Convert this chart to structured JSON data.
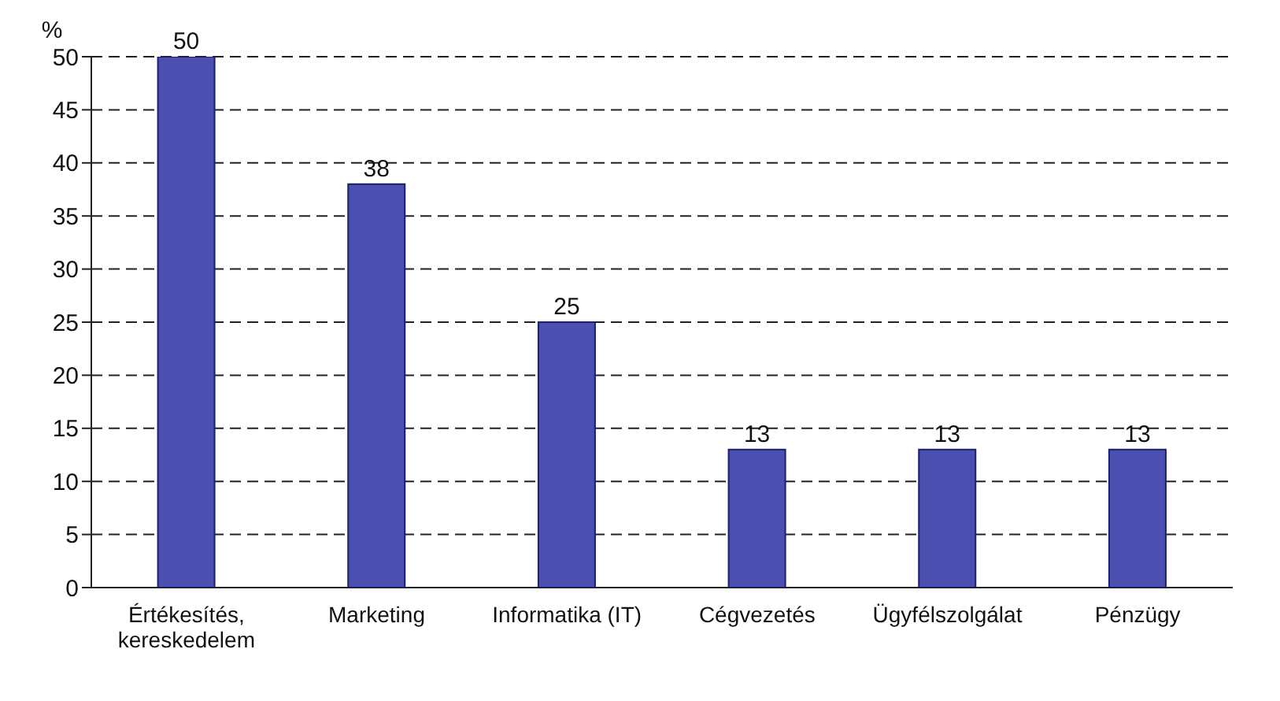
{
  "chart_data": {
    "type": "bar",
    "ylabel": "%",
    "categories": [
      "Értékesítés, kereskedelem",
      "Marketing",
      "Informatika (IT)",
      "Cégvezetés",
      "Ügyfélszolgálat",
      "Pénzügy"
    ],
    "values": [
      50,
      38,
      25,
      13,
      13,
      13
    ],
    "color": "#4a4fb0",
    "ylim": [
      0,
      50
    ],
    "yticks": [
      0,
      5,
      10,
      15,
      20,
      25,
      30,
      35,
      40,
      45,
      50
    ],
    "grid": "y",
    "data_labels": true
  }
}
